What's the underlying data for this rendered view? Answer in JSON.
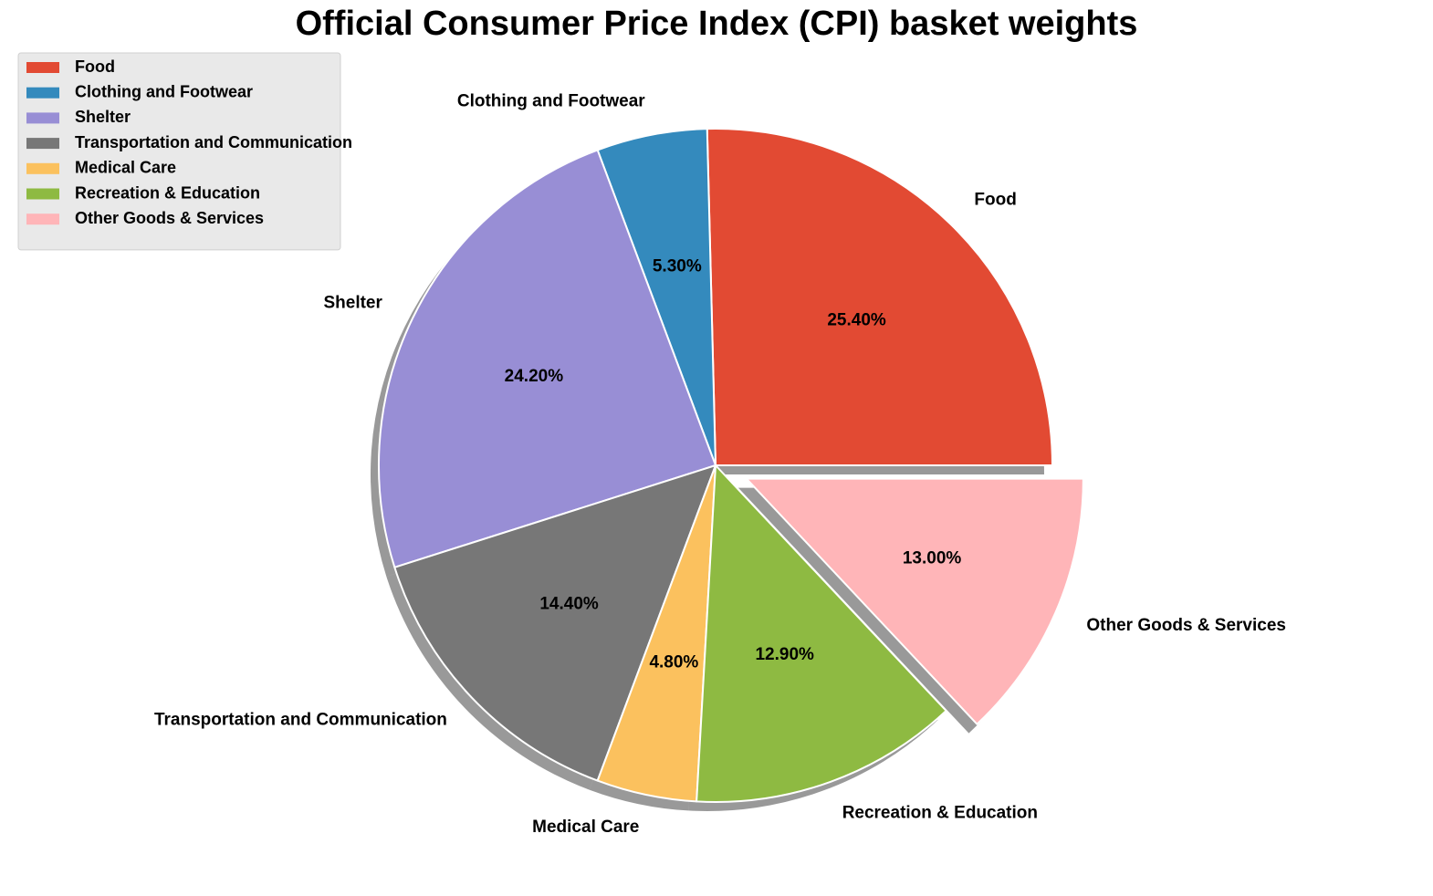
{
  "chart_data": {
    "type": "pie",
    "title": "Official Consumer Price Index (CPI) basket weights",
    "categories": [
      "Food",
      "Clothing and Footwear",
      "Shelter",
      "Transportation and Communication",
      "Medical Care",
      "Recreation & Education",
      "Other Goods & Services"
    ],
    "values": [
      25.4,
      5.3,
      24.2,
      14.4,
      4.8,
      12.9,
      13.0
    ],
    "value_labels": [
      "25.40%",
      "5.30%",
      "24.20%",
      "14.40%",
      "4.80%",
      "12.90%",
      "13.00%"
    ],
    "colors": [
      "#E24A33",
      "#348ABD",
      "#988ED5",
      "#777777",
      "#FBC15E",
      "#8EBA42",
      "#FFB5B8"
    ],
    "start_angle_deg": 0,
    "direction": "counterclockwise",
    "exploded": [
      "Other Goods & Services"
    ],
    "shadow": true,
    "legend": {
      "position": "top-left",
      "entries": [
        "Food",
        "Clothing and Footwear",
        "Shelter",
        "Transportation and Communication",
        "Medical Care",
        "Recreation & Education",
        "Other Goods & Services"
      ]
    }
  }
}
